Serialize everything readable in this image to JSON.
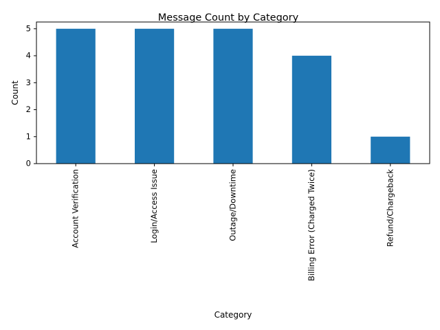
{
  "chart_data": {
    "type": "bar",
    "title": "Message Count by Category",
    "xlabel": "Category",
    "ylabel": "Count",
    "categories": [
      "Account Verification",
      "Login/Access Issue",
      "Outage/Downtime",
      "Billing Error (Charged Twice)",
      "Refund/Chargeback"
    ],
    "values": [
      5,
      5,
      5,
      4,
      1
    ],
    "ylim": [
      0,
      5.25
    ],
    "yticks": [
      0,
      1,
      2,
      3,
      4,
      5
    ],
    "grid": false,
    "legend": "none",
    "bar_color": "#1f77b4"
  }
}
